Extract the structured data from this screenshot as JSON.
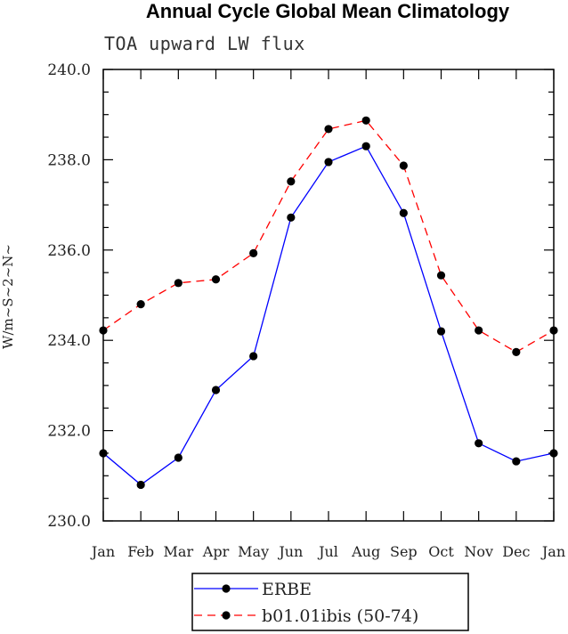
{
  "chart_data": {
    "type": "line",
    "title": "Annual Cycle Global Mean Climatology",
    "subtitle": "TOA upward LW flux",
    "ylabel": "W/m~S~2~N~",
    "xlabel": "",
    "categories": [
      "Jan",
      "Feb",
      "Mar",
      "Apr",
      "May",
      "Jun",
      "Jul",
      "Aug",
      "Sep",
      "Oct",
      "Nov",
      "Dec",
      "Jan"
    ],
    "ylim": [
      230.0,
      240.0
    ],
    "yticks": [
      "230.0",
      "232.0",
      "234.0",
      "236.0",
      "238.0",
      "240.0"
    ],
    "series": [
      {
        "name": "ERBE",
        "color": "#0000ff",
        "dash": "solid",
        "values": [
          231.5,
          230.8,
          231.4,
          232.9,
          233.65,
          236.72,
          237.95,
          238.3,
          236.82,
          234.2,
          231.72,
          231.32,
          231.5
        ]
      },
      {
        "name": "b01.01ibis (50-74)",
        "color": "#ff0000",
        "dash": "dashed",
        "values": [
          234.22,
          234.8,
          235.27,
          235.35,
          235.93,
          237.52,
          238.68,
          238.87,
          237.87,
          235.44,
          234.22,
          233.74,
          234.22
        ]
      }
    ],
    "legend_position": "bottom-center",
    "grid": false
  }
}
